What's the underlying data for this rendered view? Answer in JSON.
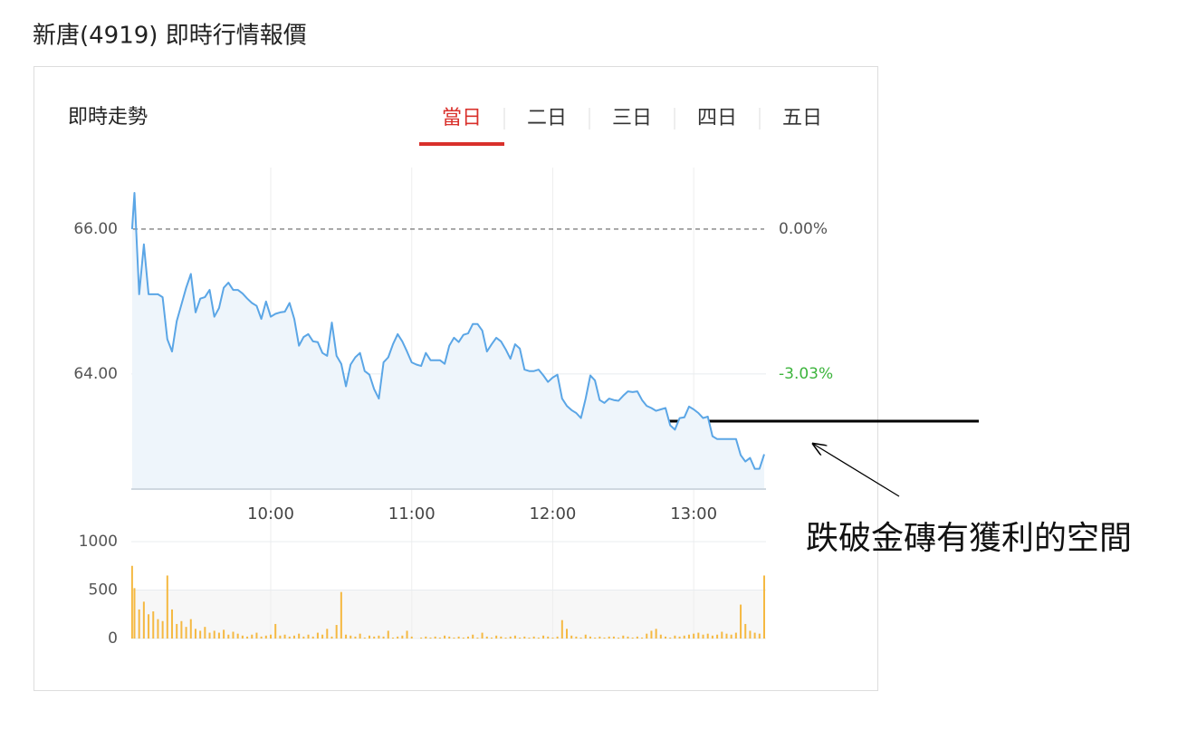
{
  "header": {
    "title": "新唐(4919) 即時行情報價"
  },
  "panel": {
    "title": "即時走勢",
    "tabs": [
      "當日",
      "二日",
      "三日",
      "四日",
      "五日"
    ],
    "active_tab": 0
  },
  "annotation": {
    "text": "跌破金磚有獲利的空間"
  },
  "chart_data": [
    {
      "type": "line",
      "color": "#5ba6e6",
      "area_color": "#eef5fb",
      "reference_line": 66,
      "reference_color": "#666",
      "xlim": [
        540,
        810
      ],
      "xticks": [
        {
          "value": 600,
          "label": "10:00"
        },
        {
          "value": 660,
          "label": "11:00"
        },
        {
          "value": 720,
          "label": "12:00"
        },
        {
          "value": 780,
          "label": "13:00"
        }
      ],
      "ylim": [
        62.41,
        66.85
      ],
      "yticks": [
        {
          "value": 66,
          "label": "66.00"
        },
        {
          "value": 64,
          "label": "64.00"
        }
      ],
      "y2lim": [
        -5.44,
        1.29
      ],
      "y2ticks": [
        {
          "value": 0,
          "label": "0.00%"
        },
        {
          "value": -3.03,
          "label": "-3.03%"
        }
      ],
      "y2tick_colors": [
        "#555555",
        "#3cb43c"
      ],
      "grid": true,
      "x": [
        541,
        542,
        544,
        546,
        548,
        550,
        552,
        554,
        556,
        558,
        560,
        562,
        564,
        566,
        568,
        570,
        572,
        574,
        576,
        578,
        580,
        582,
        584,
        586,
        588,
        590,
        592,
        594,
        596,
        598,
        600,
        602,
        604,
        606,
        608,
        610,
        612,
        614,
        616,
        618,
        620,
        622,
        624,
        626,
        628,
        630,
        632,
        634,
        636,
        638,
        640,
        642,
        644,
        646,
        648,
        650,
        652,
        654,
        656,
        658,
        660,
        662,
        664,
        666,
        668,
        670,
        672,
        674,
        676,
        678,
        680,
        682,
        684,
        686,
        688,
        690,
        692,
        694,
        696,
        698,
        700,
        702,
        704,
        706,
        708,
        710,
        712,
        714,
        716,
        718,
        720,
        722,
        724,
        726,
        728,
        730,
        732,
        734,
        736,
        738,
        740,
        742,
        744,
        746,
        748,
        750,
        752,
        754,
        756,
        758,
        760,
        762,
        764,
        766,
        768,
        770,
        772,
        774,
        776,
        778,
        780,
        782,
        784,
        786,
        788,
        790,
        792,
        794,
        796,
        798,
        800,
        802,
        804,
        806,
        808,
        810
      ],
      "values": [
        66.0,
        66.5,
        65.1,
        65.79,
        65.1,
        65.1,
        65.1,
        65.06,
        64.48,
        64.31,
        64.73,
        64.96,
        65.19,
        65.38,
        64.85,
        65.04,
        65.06,
        65.16,
        64.79,
        64.91,
        65.19,
        65.26,
        65.16,
        65.16,
        65.11,
        65.04,
        64.98,
        64.94,
        64.76,
        65.0,
        64.79,
        64.83,
        64.85,
        64.86,
        64.98,
        64.76,
        64.39,
        64.51,
        64.55,
        64.45,
        64.44,
        64.29,
        64.25,
        64.71,
        64.25,
        64.14,
        63.83,
        64.13,
        64.23,
        64.29,
        64.04,
        63.99,
        63.79,
        63.66,
        64.16,
        64.23,
        64.41,
        64.55,
        64.45,
        64.31,
        64.16,
        64.13,
        64.11,
        64.29,
        64.19,
        64.19,
        64.19,
        64.14,
        64.39,
        64.5,
        64.44,
        64.54,
        64.56,
        64.69,
        64.69,
        64.6,
        64.31,
        64.41,
        64.5,
        64.45,
        64.34,
        64.21,
        64.41,
        64.35,
        64.06,
        64.04,
        64.04,
        64.06,
        63.98,
        63.89,
        63.95,
        63.99,
        63.66,
        63.56,
        63.5,
        63.46,
        63.39,
        63.66,
        63.98,
        63.91,
        63.64,
        63.6,
        63.66,
        63.64,
        63.63,
        63.7,
        63.76,
        63.75,
        63.76,
        63.64,
        63.56,
        63.53,
        63.49,
        63.51,
        63.53,
        63.29,
        63.23,
        63.39,
        63.4,
        63.55,
        63.51,
        63.46,
        63.39,
        63.41,
        63.14,
        63.1,
        63.1,
        63.1,
        63.1,
        63.1,
        62.88,
        62.79,
        62.84,
        62.69,
        62.69,
        62.89
      ]
    },
    {
      "type": "bar",
      "color": "#f5b942",
      "xlim": [
        540,
        810
      ],
      "ylim": [
        0,
        1000
      ],
      "yticks": [
        0,
        500,
        1000
      ],
      "grid": true,
      "x": [
        541,
        542,
        544,
        546,
        548,
        550,
        552,
        554,
        556,
        558,
        560,
        562,
        564,
        566,
        568,
        570,
        572,
        574,
        576,
        578,
        580,
        582,
        584,
        586,
        588,
        590,
        592,
        594,
        596,
        598,
        600,
        602,
        604,
        606,
        608,
        610,
        612,
        614,
        616,
        618,
        620,
        622,
        624,
        626,
        628,
        630,
        632,
        634,
        636,
        638,
        640,
        642,
        644,
        646,
        648,
        650,
        652,
        654,
        656,
        658,
        660,
        662,
        664,
        666,
        668,
        670,
        672,
        674,
        676,
        678,
        680,
        682,
        684,
        686,
        688,
        690,
        692,
        694,
        696,
        698,
        700,
        702,
        704,
        706,
        708,
        710,
        712,
        714,
        716,
        718,
        720,
        722,
        724,
        726,
        728,
        730,
        732,
        734,
        736,
        738,
        740,
        742,
        744,
        746,
        748,
        750,
        752,
        754,
        756,
        758,
        760,
        762,
        764,
        766,
        768,
        770,
        772,
        774,
        776,
        778,
        780,
        782,
        784,
        786,
        788,
        790,
        792,
        794,
        796,
        798,
        800,
        802,
        804,
        806,
        808,
        810
      ],
      "values": [
        750,
        520,
        300,
        380,
        250,
        280,
        200,
        180,
        650,
        300,
        150,
        180,
        120,
        200,
        100,
        80,
        120,
        60,
        80,
        60,
        90,
        40,
        70,
        50,
        30,
        20,
        40,
        60,
        20,
        30,
        40,
        150,
        30,
        40,
        20,
        30,
        50,
        20,
        40,
        20,
        60,
        40,
        100,
        20,
        140,
        480,
        40,
        30,
        20,
        50,
        10,
        30,
        20,
        30,
        20,
        80,
        10,
        20,
        30,
        80,
        20,
        0,
        10,
        20,
        10,
        20,
        10,
        30,
        20,
        10,
        20,
        10,
        20,
        40,
        10,
        60,
        20,
        10,
        30,
        20,
        10,
        20,
        30,
        10,
        20,
        10,
        20,
        10,
        30,
        20,
        10,
        20,
        190,
        100,
        30,
        20,
        10,
        40,
        20,
        10,
        20,
        10,
        20,
        20,
        10,
        30,
        20,
        10,
        20,
        10,
        50,
        80,
        100,
        40,
        20,
        10,
        30,
        20,
        30,
        40,
        50,
        60,
        40,
        50,
        30,
        40,
        70,
        50,
        40,
        60,
        350,
        150,
        80,
        60,
        50,
        650
      ]
    }
  ]
}
